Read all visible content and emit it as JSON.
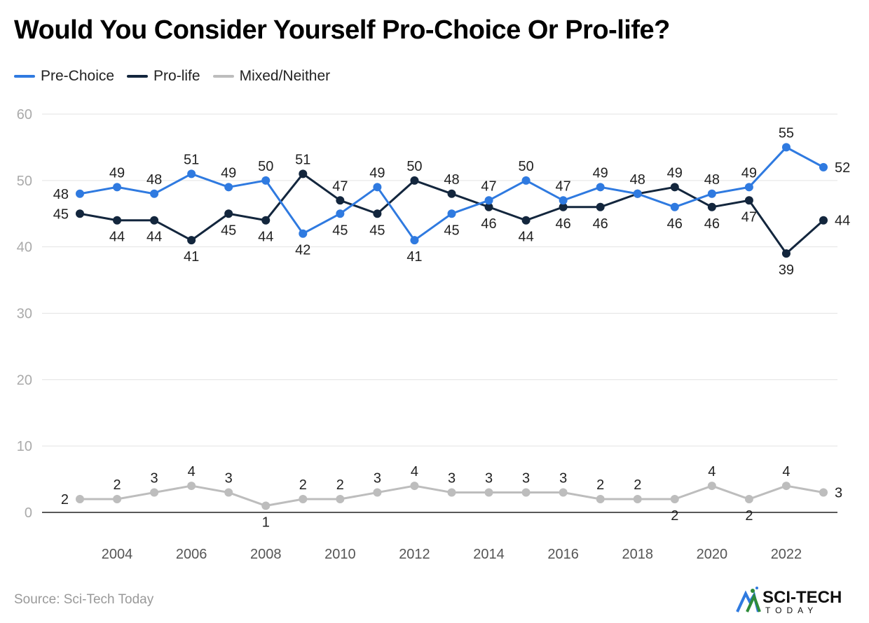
{
  "title": "Would You Consider Yourself Pro-Choice Or Pro-life?",
  "source": "Source: Sci-Tech Today",
  "logo": {
    "text": "SCI-TECH TODAY"
  },
  "chart_data": {
    "type": "line",
    "title": "Would You Consider Yourself Pro-Choice Or Pro-life?",
    "x": [
      2003,
      2004,
      2005,
      2006,
      2007,
      2008,
      2009,
      2010,
      2011,
      2012,
      2013,
      2014,
      2015,
      2016,
      2017,
      2018,
      2019,
      2020,
      2021,
      2022,
      2023
    ],
    "xticks": [
      "2004",
      "2006",
      "2008",
      "2010",
      "2012",
      "2014",
      "2016",
      "2018",
      "2020",
      "2022"
    ],
    "yticks": [
      "0",
      "10",
      "20",
      "30",
      "40",
      "50",
      "60"
    ],
    "ylim": [
      0,
      60
    ],
    "grid": true,
    "legend": "top-left",
    "series": [
      {
        "name": "Pre-Choice",
        "color": "#2f7ae0",
        "values": [
          48,
          49,
          48,
          51,
          49,
          50,
          42,
          45,
          49,
          41,
          45,
          47,
          50,
          47,
          49,
          48,
          46,
          48,
          49,
          55,
          52
        ]
      },
      {
        "name": "Pro-life",
        "color": "#13263d",
        "values": [
          45,
          44,
          44,
          41,
          45,
          44,
          51,
          47,
          45,
          50,
          48,
          46,
          44,
          46,
          46,
          48,
          49,
          46,
          47,
          39,
          44
        ]
      },
      {
        "name": "Mixed/Neither",
        "color": "#bdbdbd",
        "values": [
          2,
          2,
          3,
          4,
          3,
          1,
          2,
          2,
          3,
          4,
          3,
          3,
          3,
          3,
          2,
          2,
          2,
          4,
          2,
          4,
          3
        ]
      }
    ]
  }
}
